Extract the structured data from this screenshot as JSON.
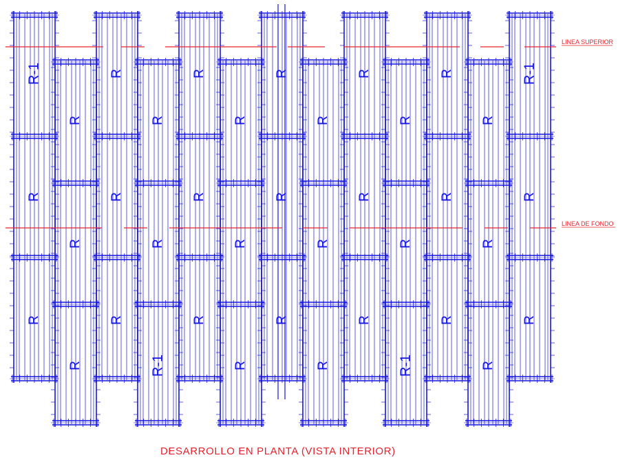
{
  "drawing": {
    "annotations": {
      "top_line": "LINEA SUPERIOR",
      "bottom_line": "LINEA DE FONDO",
      "caption": "DESARROLLO EN PLANTA (VISTA INTERIOR)"
    },
    "panel_label": "R",
    "panel_label_alt": "R-1",
    "colors": {
      "structure": "#1515e0",
      "reference_line": "#e8202a",
      "background": "#ffffff"
    }
  }
}
